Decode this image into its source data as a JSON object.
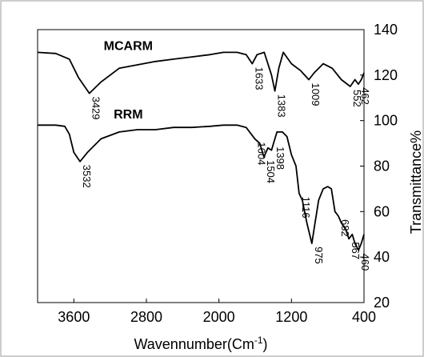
{
  "chart_data": {
    "type": "line",
    "title": "",
    "xlabel": "Wavennumber(Cm",
    "xlabel_sup": "-1",
    "xlabel_tail": ")",
    "ylabel": "Transmittance%",
    "xlim": [
      4000,
      400
    ],
    "ylim": [
      20,
      140
    ],
    "x_reversed": true,
    "xticks": [
      "3600",
      "2800",
      "2000",
      "1200",
      "400"
    ],
    "yticks": [
      "140",
      "120",
      "100",
      "80",
      "60",
      "40",
      "20"
    ],
    "grid": false,
    "colors": {
      "line": "#000000",
      "axis": "#000000",
      "background": "#ffffff",
      "frame": "#9e9e9e"
    },
    "series": [
      {
        "name": "MCARM",
        "x": [
          4000,
          3800,
          3650,
          3550,
          3429,
          3300,
          3100,
          2900,
          2700,
          2500,
          2300,
          2100,
          1950,
          1800,
          1700,
          1633,
          1580,
          1500,
          1420,
          1383,
          1340,
          1290,
          1200,
          1100,
          1009,
          950,
          850,
          750,
          650,
          552,
          500,
          462,
          430,
          400
        ],
        "y": [
          130,
          129.5,
          127,
          119,
          112,
          117,
          123,
          124.5,
          126,
          127,
          128,
          129,
          130,
          130,
          129,
          125,
          129,
          130,
          120,
          113,
          123,
          130,
          125,
          122,
          118,
          121,
          125,
          123,
          118,
          115,
          118,
          116,
          118,
          121
        ]
      },
      {
        "name": "RRM",
        "x": [
          4000,
          3800,
          3700,
          3650,
          3600,
          3532,
          3450,
          3300,
          3100,
          2900,
          2700,
          2500,
          2300,
          2100,
          1950,
          1800,
          1700,
          1604,
          1550,
          1504,
          1460,
          1420,
          1398,
          1360,
          1300,
          1250,
          1200,
          1150,
          1116,
          1080,
          1030,
          975,
          940,
          900,
          850,
          800,
          760,
          720,
          682,
          650,
          600,
          567,
          530,
          500,
          460,
          430,
          400
        ],
        "y": [
          98,
          98,
          97.5,
          94,
          86,
          82,
          86,
          92,
          95,
          96,
          96,
          97,
          97,
          97.5,
          98,
          98,
          97,
          92,
          90,
          84,
          88,
          87,
          90,
          95,
          95,
          93,
          85,
          80,
          68,
          65,
          55,
          46,
          55,
          65,
          70,
          71,
          70,
          60,
          58,
          55,
          52,
          48,
          50,
          46,
          43,
          46,
          50
        ]
      }
    ],
    "annotations": [
      {
        "text": "MCARM",
        "kind": "series"
      },
      {
        "text": "RRM",
        "kind": "series"
      },
      {
        "text": "3429",
        "x": 3429,
        "y": 112
      },
      {
        "text": "1633",
        "x": 1633,
        "y": 125
      },
      {
        "text": "1383",
        "x": 1383,
        "y": 113
      },
      {
        "text": "1009",
        "x": 1009,
        "y": 118
      },
      {
        "text": "552",
        "x": 552,
        "y": 115
      },
      {
        "text": "462",
        "x": 462,
        "y": 116
      },
      {
        "text": "3532",
        "x": 3532,
        "y": 82
      },
      {
        "text": "1604",
        "x": 1604,
        "y": 92
      },
      {
        "text": "1504",
        "x": 1504,
        "y": 84
      },
      {
        "text": "1398",
        "x": 1398,
        "y": 90
      },
      {
        "text": "1116",
        "x": 1116,
        "y": 68
      },
      {
        "text": "975",
        "x": 975,
        "y": 46
      },
      {
        "text": "682",
        "x": 682,
        "y": 58
      },
      {
        "text": "567",
        "x": 567,
        "y": 48
      },
      {
        "text": "460",
        "x": 460,
        "y": 43
      }
    ]
  }
}
